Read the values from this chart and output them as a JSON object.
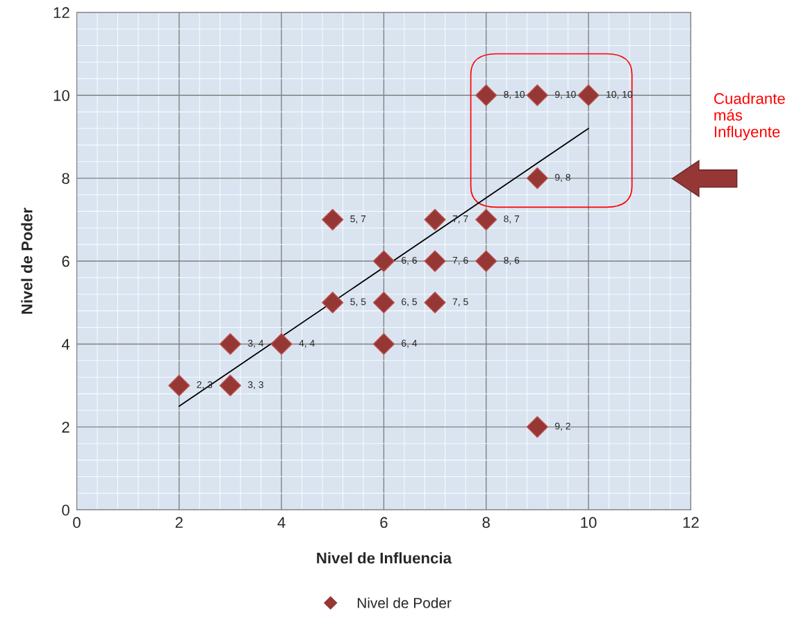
{
  "chart_data": {
    "type": "scatter",
    "xlabel": "Nivel de Influencia",
    "ylabel": "Nivel de Poder",
    "series": [
      {
        "name": "Nivel de Poder",
        "color": "#953735",
        "marker": "diamond",
        "x": [
          2,
          3,
          3,
          4,
          5,
          5,
          6,
          6,
          6,
          7,
          7,
          7,
          8,
          8,
          8,
          9,
          9,
          9,
          10
        ],
        "values": [
          3,
          3,
          4,
          4,
          5,
          7,
          4,
          5,
          6,
          5,
          6,
          7,
          6,
          7,
          10,
          2,
          8,
          10,
          10
        ],
        "value_labels": [
          "2, 3",
          "3, 3",
          "3, 4",
          "4, 4",
          "5, 5",
          "5, 7",
          "6, 4",
          "6, 5",
          "6, 6",
          "7, 5",
          "7, 6",
          "7, 7",
          "8, 6",
          "8, 7",
          "8, 10",
          "9, 2",
          "9, 8",
          "9, 10",
          "10, 10"
        ]
      },
      {
        "type": "line",
        "color": "#000000",
        "line_style": "solid",
        "x": [
          2,
          10
        ],
        "values": [
          2.5,
          9.2
        ]
      }
    ],
    "xlim": [
      0,
      12
    ],
    "ylim": [
      0,
      12
    ],
    "xticks": [
      0,
      2,
      4,
      6,
      8,
      10,
      12
    ],
    "yticks": [
      0,
      2,
      4,
      6,
      8,
      10,
      12
    ],
    "grid": true,
    "legend": "bottom",
    "annotations": [
      "Cuadrante\nmás\nInfluyente"
    ]
  }
}
